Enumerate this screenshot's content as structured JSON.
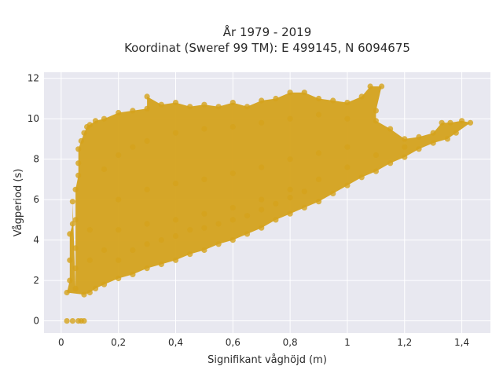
{
  "chart_data": {
    "type": "scatter",
    "title_line1": "År 1979 - 2019",
    "title_line2": "Koordinat (Sweref 99 TM): E 499145, N 6094675",
    "xlabel": "Signifikant våghöjd (m)",
    "ylabel": "Vågperiod (s)",
    "xlim": [
      -0.06,
      1.5
    ],
    "ylim": [
      -0.6,
      12.3
    ],
    "x_ticks": [
      0,
      0.2,
      0.4,
      0.6,
      0.8,
      1.0,
      1.2,
      1.4
    ],
    "x_tick_labels": [
      "0",
      "0,2",
      "0,4",
      "0,6",
      "0,8",
      "1",
      "1,2",
      "1,4"
    ],
    "y_ticks": [
      0,
      2,
      4,
      6,
      8,
      10,
      12
    ],
    "y_tick_labels": [
      "0",
      "2",
      "4",
      "6",
      "8",
      "10",
      "12"
    ],
    "grid": true,
    "marker_color": "#D4A21C",
    "plot_background": "#E8E8F0",
    "series": [
      {
        "points": [
          [
            0.02,
            1.4
          ],
          [
            0.03,
            2.0
          ],
          [
            0.03,
            3.0
          ],
          [
            0.03,
            4.3
          ],
          [
            0.04,
            4.8
          ],
          [
            0.04,
            5.9
          ],
          [
            0.05,
            1.6
          ],
          [
            0.05,
            2.6
          ],
          [
            0.05,
            3.6
          ],
          [
            0.05,
            5.0
          ],
          [
            0.05,
            6.5
          ],
          [
            0.06,
            7.2
          ],
          [
            0.06,
            7.8
          ],
          [
            0.06,
            8.5
          ],
          [
            0.07,
            8.9
          ],
          [
            0.08,
            9.3
          ],
          [
            0.09,
            9.6
          ],
          [
            0.1,
            9.7
          ],
          [
            0.12,
            9.9
          ],
          [
            0.15,
            10.0
          ],
          [
            0.2,
            10.3
          ],
          [
            0.25,
            10.4
          ],
          [
            0.3,
            10.5
          ],
          [
            0.3,
            11.1
          ],
          [
            0.35,
            10.7
          ],
          [
            0.4,
            10.8
          ],
          [
            0.45,
            10.6
          ],
          [
            0.5,
            10.7
          ],
          [
            0.55,
            10.6
          ],
          [
            0.6,
            10.8
          ],
          [
            0.65,
            10.6
          ],
          [
            0.7,
            10.9
          ],
          [
            0.75,
            11.0
          ],
          [
            0.8,
            11.3
          ],
          [
            0.85,
            11.3
          ],
          [
            0.9,
            11.0
          ],
          [
            0.95,
            10.9
          ],
          [
            1.0,
            10.8
          ],
          [
            1.05,
            11.1
          ],
          [
            1.08,
            11.6
          ],
          [
            1.12,
            11.6
          ],
          [
            1.1,
            10.4
          ],
          [
            1.1,
            9.9
          ],
          [
            1.15,
            9.5
          ],
          [
            1.2,
            9.0
          ],
          [
            1.25,
            9.1
          ],
          [
            1.3,
            9.3
          ],
          [
            1.33,
            9.8
          ],
          [
            1.36,
            9.8
          ],
          [
            1.4,
            9.9
          ],
          [
            1.43,
            9.8
          ],
          [
            1.38,
            9.3
          ],
          [
            1.35,
            9.0
          ],
          [
            1.3,
            8.8
          ],
          [
            1.25,
            8.5
          ],
          [
            1.2,
            8.1
          ],
          [
            1.15,
            7.8
          ],
          [
            1.1,
            7.4
          ],
          [
            1.05,
            7.1
          ],
          [
            1.0,
            6.7
          ],
          [
            0.95,
            6.3
          ],
          [
            0.9,
            5.9
          ],
          [
            0.85,
            5.6
          ],
          [
            0.8,
            5.3
          ],
          [
            0.75,
            5.0
          ],
          [
            0.7,
            4.6
          ],
          [
            0.65,
            4.3
          ],
          [
            0.6,
            4.0
          ],
          [
            0.55,
            3.8
          ],
          [
            0.5,
            3.5
          ],
          [
            0.45,
            3.3
          ],
          [
            0.4,
            3.0
          ],
          [
            0.35,
            2.8
          ],
          [
            0.3,
            2.6
          ],
          [
            0.25,
            2.3
          ],
          [
            0.2,
            2.1
          ],
          [
            0.15,
            1.8
          ],
          [
            0.12,
            1.6
          ],
          [
            0.1,
            1.4
          ],
          [
            0.08,
            1.3
          ],
          [
            0.02,
            0.0
          ],
          [
            0.04,
            0.0
          ],
          [
            0.06,
            0.0
          ],
          [
            0.07,
            0.0
          ],
          [
            0.08,
            0.0
          ],
          [
            0.15,
            7.5
          ],
          [
            0.2,
            8.2
          ],
          [
            0.25,
            8.6
          ],
          [
            0.3,
            8.9
          ],
          [
            0.4,
            9.3
          ],
          [
            0.5,
            9.5
          ],
          [
            0.6,
            9.6
          ],
          [
            0.7,
            9.8
          ],
          [
            0.8,
            10.0
          ],
          [
            0.9,
            10.2
          ],
          [
            1.0,
            10.0
          ],
          [
            0.2,
            6.0
          ],
          [
            0.3,
            6.5
          ],
          [
            0.4,
            6.8
          ],
          [
            0.5,
            7.0
          ],
          [
            0.6,
            7.3
          ],
          [
            0.7,
            7.6
          ],
          [
            0.8,
            8.0
          ],
          [
            0.9,
            8.3
          ],
          [
            1.0,
            8.6
          ],
          [
            0.1,
            4.5
          ],
          [
            0.2,
            4.5
          ],
          [
            0.3,
            4.8
          ],
          [
            0.4,
            5.0
          ],
          [
            0.5,
            5.3
          ],
          [
            0.6,
            5.6
          ],
          [
            0.7,
            6.0
          ],
          [
            0.8,
            6.5
          ],
          [
            0.9,
            7.0
          ],
          [
            1.0,
            7.6
          ],
          [
            1.1,
            8.2
          ],
          [
            1.2,
            8.6
          ],
          [
            0.1,
            3.0
          ],
          [
            0.15,
            3.5
          ],
          [
            0.2,
            3.0
          ],
          [
            0.25,
            3.5
          ],
          [
            0.3,
            3.8
          ],
          [
            0.35,
            4.0
          ],
          [
            0.4,
            4.2
          ],
          [
            0.45,
            4.5
          ],
          [
            0.5,
            4.6
          ],
          [
            0.55,
            4.8
          ],
          [
            0.6,
            5.0
          ],
          [
            0.65,
            5.2
          ],
          [
            0.7,
            5.5
          ],
          [
            0.75,
            5.8
          ],
          [
            0.8,
            6.1
          ],
          [
            0.85,
            6.4
          ]
        ]
      }
    ]
  }
}
